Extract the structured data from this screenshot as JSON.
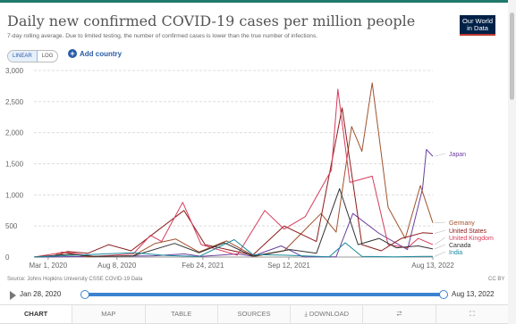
{
  "header": {
    "title": "Daily new confirmed COVID-19 cases per million people",
    "subtitle": "7-day rolling average. Due to limited testing, the number of confirmed cases is lower than the true number of infections.",
    "logo": [
      "Our World",
      "in Data"
    ]
  },
  "controls": {
    "linear_label": "LINEAR",
    "log_label": "LOG",
    "add_country_label": "Add country",
    "active_scale": "linear"
  },
  "chart_data": {
    "type": "line",
    "title": "Daily new confirmed COVID-19 cases per million people",
    "ylim": [
      0,
      3000
    ],
    "y_ticks": [
      "3,000",
      "2,500",
      "2,000",
      "1,500",
      "1,000",
      "500",
      "0"
    ],
    "x_ticks": [
      "Mar 1, 2020",
      "Aug 8, 2020",
      "Feb 24, 2021",
      "Sep 12, 2021",
      "Aug 13, 2022"
    ],
    "xlim": [
      "2020-01-28",
      "2022-08-13"
    ],
    "grid": true,
    "series": [
      {
        "name": "Japan",
        "color": "#6b3fa0",
        "x": [
          "2020-01-28",
          "2020-11-01",
          "2021-01-12",
          "2021-02-20",
          "2021-05-15",
          "2021-06-20",
          "2021-08-25",
          "2021-10-15",
          "2021-12-31",
          "2022-02-08",
          "2022-04-10",
          "2022-06-15",
          "2022-07-20",
          "2022-07-29",
          "2022-08-13"
        ],
        "values": [
          0,
          20,
          50,
          10,
          50,
          15,
          180,
          5,
          5,
          700,
          380,
          120,
          1100,
          1730,
          1620
        ]
      },
      {
        "name": "Germany",
        "color": "#a0522d",
        "x": [
          "2020-01-28",
          "2020-03-15",
          "2020-04-01",
          "2020-06-01",
          "2020-09-15",
          "2020-11-05",
          "2020-12-23",
          "2021-02-15",
          "2021-04-20",
          "2021-06-25",
          "2021-09-01",
          "2021-11-26",
          "2021-12-31",
          "2022-02-05",
          "2022-03-01",
          "2022-03-25",
          "2022-05-01",
          "2022-06-10",
          "2022-07-15",
          "2022-08-13"
        ],
        "values": [
          0,
          20,
          80,
          5,
          20,
          220,
          290,
          80,
          260,
          10,
          100,
          700,
          400,
          2100,
          1700,
          2800,
          800,
          300,
          1150,
          550
        ]
      },
      {
        "name": "United States",
        "color": "#8b1a1a",
        "x": [
          "2020-01-28",
          "2020-03-20",
          "2020-04-15",
          "2020-06-01",
          "2020-07-20",
          "2020-09-10",
          "2020-11-15",
          "2021-01-11",
          "2021-03-01",
          "2021-06-20",
          "2021-09-01",
          "2021-11-15",
          "2022-01-14",
          "2022-03-01",
          "2022-04-15",
          "2022-06-01",
          "2022-07-20",
          "2022-08-13"
        ],
        "values": [
          0,
          20,
          90,
          60,
          200,
          100,
          450,
          750,
          200,
          30,
          500,
          250,
          2400,
          200,
          100,
          300,
          390,
          380
        ]
      },
      {
        "name": "United Kingdom",
        "color": "#d63c5b",
        "x": [
          "2020-01-28",
          "2020-04-10",
          "2020-06-15",
          "2020-09-15",
          "2020-10-25",
          "2020-11-20",
          "2021-01-08",
          "2021-02-20",
          "2021-05-15",
          "2021-07-18",
          "2021-09-01",
          "2021-10-20",
          "2021-12-20",
          "2022-01-04",
          "2022-02-01",
          "2022-03-25",
          "2022-05-01",
          "2022-06-15",
          "2022-07-10",
          "2022-08-13"
        ],
        "values": [
          0,
          80,
          10,
          50,
          350,
          250,
          880,
          200,
          30,
          750,
          450,
          650,
          1400,
          2700,
          1200,
          1300,
          200,
          150,
          300,
          200
        ]
      },
      {
        "name": "Canada",
        "color": "#333333",
        "x": [
          "2020-01-28",
          "2020-04-20",
          "2020-06-15",
          "2020-09-15",
          "2020-12-20",
          "2021-02-15",
          "2021-04-15",
          "2021-06-20",
          "2021-09-15",
          "2021-11-15",
          "2022-01-08",
          "2022-02-20",
          "2022-04-10",
          "2022-05-20",
          "2022-07-10",
          "2022-08-13"
        ],
        "values": [
          0,
          45,
          10,
          20,
          220,
          70,
          230,
          15,
          120,
          60,
          1100,
          200,
          300,
          150,
          180,
          130
        ]
      },
      {
        "name": "India",
        "color": "#1b8a9c",
        "x": [
          "2020-01-28",
          "2020-09-16",
          "2020-12-01",
          "2021-02-15",
          "2021-05-08",
          "2021-06-20",
          "2021-09-01",
          "2021-12-15",
          "2022-01-21",
          "2022-03-01",
          "2022-05-15",
          "2022-07-20",
          "2022-08-13"
        ],
        "values": [
          0,
          70,
          25,
          8,
          280,
          40,
          30,
          5,
          230,
          10,
          5,
          12,
          10
        ]
      }
    ]
  },
  "footer": {
    "source": "Source: Johns Hopkins University CSSE COVID-19 Data",
    "license": "CC BY",
    "timeline_start": "Jan 28, 2020",
    "timeline_end": "Aug 13, 2022"
  },
  "tabs": [
    {
      "label": "CHART"
    },
    {
      "label": "MAP"
    },
    {
      "label": "TABLE"
    },
    {
      "label": "SOURCES"
    },
    {
      "label": "DOWNLOAD",
      "icon": "download-icon"
    },
    {
      "label": "",
      "icon": "share-icon"
    },
    {
      "label": "",
      "icon": "fullscreen-icon"
    }
  ]
}
